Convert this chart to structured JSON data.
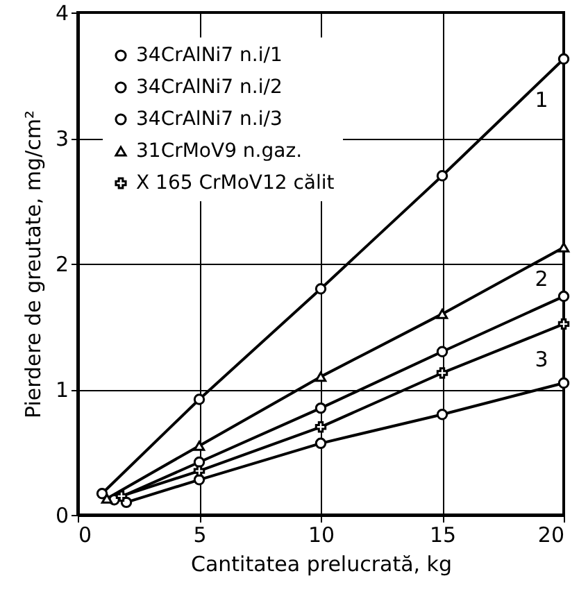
{
  "chart_data": {
    "type": "line",
    "xlabel": "Cantitatea prelucrată, kg",
    "ylabel": "Pierdere de greutate, mg/cm²",
    "xlim": [
      0,
      20
    ],
    "ylim": [
      0,
      4
    ],
    "xticks": [
      0,
      5,
      10,
      15,
      20
    ],
    "yticks": [
      0,
      1,
      2,
      3,
      4
    ],
    "grid": true,
    "legend": "top left",
    "line_style": "solid",
    "series": [
      {
        "name": "34CrAlNi7  n.i/1",
        "color": "#000000",
        "marker": "circle",
        "x": [
          1,
          5,
          10,
          15,
          20
        ],
        "values": [
          0.17,
          0.92,
          1.8,
          2.7,
          3.63
        ]
      },
      {
        "name": "34CrAlNi7  n.i/2",
        "color": "#000000",
        "marker": "circle",
        "x": [
          1.5,
          5,
          10,
          15,
          20
        ],
        "values": [
          0.12,
          0.42,
          0.85,
          1.3,
          1.74
        ]
      },
      {
        "name": "34CrAlNi7  n.i/3",
        "color": "#000000",
        "marker": "circle",
        "x": [
          2,
          5,
          10,
          15,
          20
        ],
        "values": [
          0.1,
          0.28,
          0.57,
          0.8,
          1.05
        ]
      },
      {
        "name": "31CrMoV9  n.gaz.",
        "color": "#000000",
        "marker": "triangle",
        "x": [
          1.2,
          5,
          10,
          15,
          20
        ],
        "values": [
          0.13,
          0.55,
          1.1,
          1.6,
          2.13
        ]
      },
      {
        "name": "X 165 CrMoV12 călit",
        "color": "#000000",
        "marker": "cross",
        "x": [
          1.8,
          5,
          10,
          15,
          20
        ],
        "values": [
          0.15,
          0.35,
          0.7,
          1.13,
          1.52
        ]
      }
    ],
    "annotations": [
      "1",
      "2",
      "3"
    ]
  }
}
